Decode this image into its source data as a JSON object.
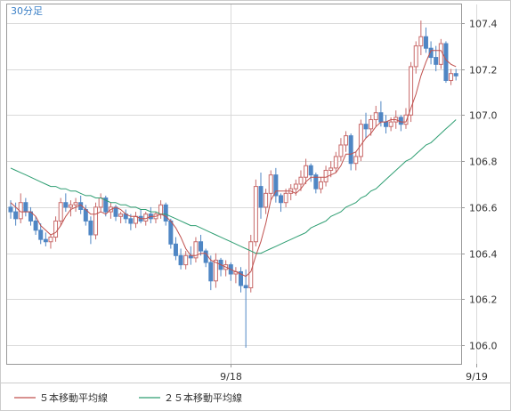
{
  "chart_data": {
    "type": "candlestick",
    "timeframe_label": "30分足",
    "y_ticks": [
      "107.4",
      "107.2",
      "107.0",
      "106.8",
      "106.6",
      "106.4",
      "106.2",
      "106.0"
    ],
    "x_ticks": [
      {
        "label": "9/18",
        "index": 44
      },
      {
        "label": "9/19",
        "index": 93
      }
    ],
    "ylim": [
      105.92,
      107.48
    ],
    "grid": true,
    "up_color": "#c86a6a",
    "down_color": "#4f86c4",
    "legend": [
      {
        "name": "５本移動平均線",
        "color": "#c0504d"
      },
      {
        "name": "２５本移動平均線",
        "color": "#2e9e72"
      }
    ],
    "candles": [
      [
        106.6,
        106.63,
        106.55,
        106.58
      ],
      [
        106.58,
        106.62,
        106.52,
        106.55
      ],
      [
        106.55,
        106.66,
        106.53,
        106.62
      ],
      [
        106.62,
        106.64,
        106.56,
        106.58
      ],
      [
        106.58,
        106.6,
        106.52,
        106.54
      ],
      [
        106.54,
        106.56,
        106.48,
        106.5
      ],
      [
        106.5,
        106.53,
        106.44,
        106.46
      ],
      [
        106.46,
        106.49,
        106.43,
        106.45
      ],
      [
        106.45,
        106.48,
        106.42,
        106.47
      ],
      [
        106.47,
        106.56,
        106.45,
        106.54
      ],
      [
        106.54,
        106.64,
        106.52,
        106.62
      ],
      [
        106.62,
        106.66,
        106.58,
        106.6
      ],
      [
        106.6,
        106.63,
        106.56,
        106.61
      ],
      [
        106.61,
        106.64,
        106.58,
        106.62
      ],
      [
        106.62,
        106.65,
        106.57,
        106.59
      ],
      [
        106.59,
        106.61,
        106.52,
        106.54
      ],
      [
        106.54,
        106.56,
        106.44,
        106.48
      ],
      [
        106.48,
        106.62,
        106.46,
        106.6
      ],
      [
        106.6,
        106.66,
        106.58,
        106.64
      ],
      [
        106.64,
        106.65,
        106.56,
        106.58
      ],
      [
        106.58,
        106.62,
        106.55,
        106.6
      ],
      [
        106.6,
        106.61,
        106.54,
        106.56
      ],
      [
        106.56,
        106.58,
        106.53,
        106.57
      ],
      [
        106.57,
        106.59,
        106.53,
        106.55
      ],
      [
        106.55,
        106.57,
        106.5,
        106.53
      ],
      [
        106.53,
        106.58,
        106.51,
        106.56
      ],
      [
        106.56,
        106.59,
        106.53,
        106.54
      ],
      [
        106.54,
        106.58,
        106.52,
        106.57
      ],
      [
        106.57,
        106.6,
        106.53,
        106.55
      ],
      [
        106.55,
        106.58,
        106.53,
        106.57
      ],
      [
        106.57,
        106.63,
        106.55,
        106.61
      ],
      [
        106.61,
        106.62,
        106.52,
        106.54
      ],
      [
        106.54,
        106.55,
        106.42,
        106.44
      ],
      [
        106.44,
        106.47,
        106.37,
        106.39
      ],
      [
        106.39,
        106.42,
        106.33,
        106.35
      ],
      [
        106.35,
        106.41,
        106.33,
        106.39
      ],
      [
        106.39,
        106.43,
        106.35,
        106.38
      ],
      [
        106.38,
        106.47,
        106.36,
        106.45
      ],
      [
        106.45,
        106.48,
        106.39,
        106.41
      ],
      [
        106.41,
        106.42,
        106.34,
        106.36
      ],
      [
        106.36,
        106.39,
        106.24,
        106.28
      ],
      [
        106.28,
        106.4,
        106.25,
        106.37
      ],
      [
        106.37,
        106.38,
        106.3,
        106.33
      ],
      [
        106.33,
        106.37,
        106.3,
        106.35
      ],
      [
        106.35,
        106.36,
        106.28,
        106.31
      ],
      [
        106.31,
        106.34,
        106.27,
        106.32
      ],
      [
        106.32,
        106.34,
        106.23,
        106.26
      ],
      [
        106.26,
        106.33,
        105.99,
        106.25
      ],
      [
        106.25,
        106.48,
        106.23,
        106.45
      ],
      [
        106.45,
        106.72,
        106.43,
        106.69
      ],
      [
        106.69,
        106.75,
        106.55,
        106.6
      ],
      [
        106.6,
        106.68,
        106.57,
        106.66
      ],
      [
        106.66,
        106.76,
        106.63,
        106.74
      ],
      [
        106.74,
        106.77,
        106.62,
        106.65
      ],
      [
        106.65,
        106.66,
        106.58,
        106.62
      ],
      [
        106.62,
        106.68,
        106.6,
        106.66
      ],
      [
        106.66,
        106.7,
        106.63,
        106.68
      ],
      [
        106.68,
        106.72,
        106.65,
        106.7
      ],
      [
        106.7,
        106.76,
        106.67,
        106.73
      ],
      [
        106.73,
        106.81,
        106.7,
        106.78
      ],
      [
        106.78,
        106.79,
        106.71,
        106.74
      ],
      [
        106.74,
        106.75,
        106.66,
        106.68
      ],
      [
        106.68,
        106.73,
        106.66,
        106.71
      ],
      [
        106.71,
        106.78,
        106.69,
        106.76
      ],
      [
        106.76,
        106.8,
        106.73,
        106.77
      ],
      [
        106.77,
        106.84,
        106.75,
        106.82
      ],
      [
        106.82,
        106.9,
        106.8,
        106.87
      ],
      [
        106.87,
        106.93,
        106.84,
        106.91
      ],
      [
        106.91,
        106.92,
        106.76,
        106.79
      ],
      [
        106.79,
        106.84,
        106.76,
        106.82
      ],
      [
        106.82,
        106.98,
        106.8,
        106.96
      ],
      [
        106.96,
        107.01,
        106.9,
        106.94
      ],
      [
        106.94,
        107.0,
        106.91,
        106.98
      ],
      [
        106.98,
        107.04,
        106.95,
        107.01
      ],
      [
        107.01,
        107.06,
        106.95,
        106.97
      ],
      [
        106.97,
        107.0,
        106.92,
        106.95
      ],
      [
        106.95,
        106.99,
        106.93,
        106.97
      ],
      [
        106.97,
        107.02,
        106.94,
        106.99
      ],
      [
        106.99,
        107.0,
        106.93,
        106.96
      ],
      [
        106.96,
        107.03,
        106.94,
        107.0
      ],
      [
        107.0,
        107.23,
        106.97,
        107.21
      ],
      [
        107.21,
        107.32,
        107.18,
        107.3
      ],
      [
        107.3,
        107.41,
        107.26,
        107.34
      ],
      [
        107.34,
        107.38,
        107.27,
        107.29
      ],
      [
        107.29,
        107.32,
        107.22,
        107.25
      ],
      [
        107.25,
        107.3,
        107.19,
        107.22
      ],
      [
        107.22,
        107.33,
        107.2,
        107.31
      ],
      [
        107.31,
        107.32,
        107.14,
        107.15
      ],
      [
        107.15,
        107.2,
        107.13,
        107.18
      ],
      [
        107.18,
        107.2,
        107.15,
        107.17
      ]
    ],
    "ma5": [
      106.62,
      106.6,
      106.58,
      106.58,
      106.58,
      106.56,
      106.52,
      106.5,
      106.48,
      106.49,
      106.52,
      106.56,
      106.59,
      106.6,
      106.61,
      106.59,
      106.57,
      106.57,
      106.58,
      106.57,
      106.59,
      106.6,
      106.59,
      106.57,
      106.56,
      106.56,
      106.55,
      106.55,
      106.56,
      106.56,
      106.57,
      106.56,
      106.54,
      106.51,
      106.47,
      106.42,
      106.39,
      106.39,
      106.4,
      106.4,
      106.37,
      106.36,
      106.35,
      106.34,
      106.33,
      106.32,
      106.31,
      106.3,
      106.32,
      106.39,
      106.45,
      106.53,
      106.63,
      106.67,
      106.67,
      106.67,
      106.67,
      106.66,
      106.68,
      106.71,
      106.73,
      106.73,
      106.73,
      106.73,
      106.74,
      106.75,
      106.78,
      106.83,
      106.83,
      106.84,
      106.87,
      106.9,
      106.92,
      106.95,
      106.97,
      106.97,
      106.98,
      106.98,
      106.97,
      106.97,
      107.03,
      107.09,
      107.17,
      107.23,
      107.28,
      107.28,
      107.28,
      107.24,
      107.22,
      107.21
    ],
    "ma25": [
      106.77,
      106.76,
      106.75,
      106.74,
      106.73,
      106.72,
      106.71,
      106.7,
      106.69,
      106.69,
      106.68,
      106.68,
      106.67,
      106.67,
      106.66,
      106.65,
      106.65,
      106.64,
      106.64,
      106.63,
      106.62,
      106.62,
      106.61,
      106.61,
      106.6,
      106.6,
      106.59,
      106.59,
      106.58,
      106.58,
      106.57,
      106.57,
      106.56,
      106.55,
      106.54,
      106.53,
      106.52,
      106.52,
      106.51,
      106.5,
      106.49,
      106.48,
      106.47,
      106.46,
      106.45,
      106.44,
      106.43,
      106.42,
      106.41,
      106.4,
      106.4,
      106.41,
      106.42,
      106.43,
      106.44,
      106.45,
      106.46,
      106.47,
      106.48,
      106.49,
      106.51,
      106.52,
      106.53,
      106.54,
      106.56,
      106.57,
      106.58,
      106.6,
      106.61,
      106.62,
      106.64,
      106.65,
      106.67,
      106.68,
      106.7,
      106.72,
      106.74,
      106.76,
      106.78,
      106.8,
      106.81,
      106.83,
      106.85,
      106.87,
      106.88,
      106.9,
      106.92,
      106.94,
      106.96,
      106.98
    ]
  }
}
